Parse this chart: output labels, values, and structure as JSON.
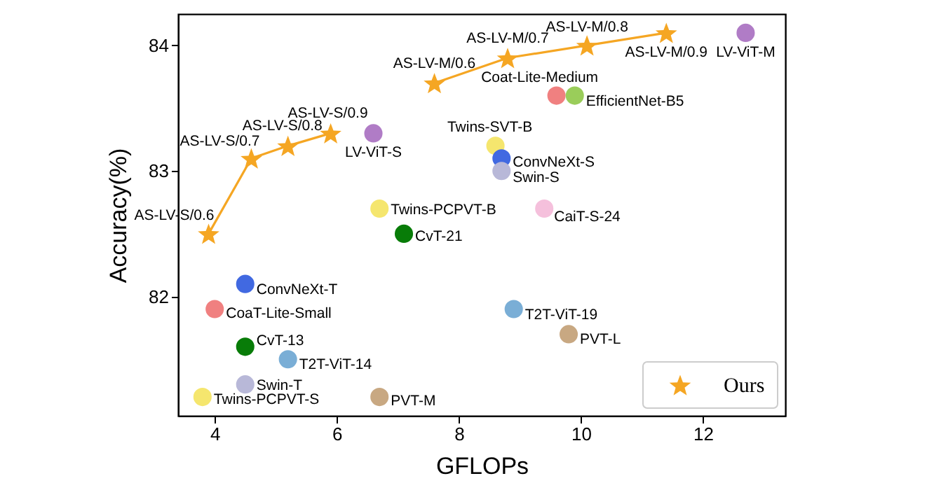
{
  "chart_data": {
    "type": "scatter",
    "xlabel": "GFLOPs",
    "ylabel": "Accuracy(%)",
    "xlim": [
      3.4,
      13.35
    ],
    "xticks": [
      4,
      6,
      8,
      10,
      12
    ],
    "ylim": [
      81.05,
      84.25
    ],
    "yticks": [
      82,
      83,
      84
    ],
    "grid": false,
    "legend": "bottom right",
    "series": [
      {
        "name": "Ours",
        "type": "line",
        "marker": "star",
        "color": "#f5a623",
        "x": [
          3.9,
          4.6,
          5.2,
          5.9
        ],
        "values": [
          82.5,
          83.1,
          83.2,
          83.3
        ]
      },
      {
        "type": "line",
        "marker": "star",
        "color": "#f5a623",
        "x": [
          7.6,
          8.8,
          10.1,
          11.4
        ],
        "values": [
          83.7,
          83.9,
          84.0,
          84.1
        ]
      },
      {
        "name": "LV-ViT-M",
        "type": "scatter",
        "marker": "circle",
        "color": "#b07cc6",
        "x": [
          12.7
        ],
        "values": [
          84.1
        ]
      },
      {
        "name": "LV-ViT-S",
        "marker": "circle",
        "color": "#b07cc6",
        "x": [
          6.6
        ],
        "values": [
          83.3
        ]
      },
      {
        "name": "Coat-Lite-Medium",
        "marker": "circle",
        "color": "#f08080",
        "x": [
          9.6
        ],
        "values": [
          83.6
        ]
      },
      {
        "name": "EfficientNet-B5",
        "marker": "circle",
        "color": "#9acd5a",
        "x": [
          9.9
        ],
        "values": [
          83.6
        ]
      },
      {
        "name": "Twins-SVT-B",
        "marker": "circle",
        "color": "#f5e66e",
        "x": [
          8.6
        ],
        "values": [
          83.2
        ]
      },
      {
        "name": "ConvNeXt-S",
        "marker": "circle",
        "color": "#4169e1",
        "x": [
          8.7
        ],
        "values": [
          83.1
        ]
      },
      {
        "name": "Swin-S",
        "marker": "circle",
        "color": "#b8b8d8",
        "x": [
          8.7
        ],
        "values": [
          83.0
        ]
      },
      {
        "name": "CaiT-S-24",
        "marker": "circle",
        "color": "#f5c0dc",
        "x": [
          9.4
        ],
        "values": [
          82.7
        ]
      },
      {
        "name": "Twins-PCPVT-B",
        "marker": "circle",
        "color": "#f5e66e",
        "x": [
          6.7
        ],
        "values": [
          82.7
        ]
      },
      {
        "name": "CvT-21",
        "marker": "circle",
        "color": "#087c08",
        "x": [
          7.1
        ],
        "values": [
          82.5
        ]
      },
      {
        "name": "ConvNeXt-T",
        "marker": "circle",
        "color": "#4169e1",
        "x": [
          4.5
        ],
        "values": [
          82.1
        ]
      },
      {
        "name": "CoaT-Lite-Small",
        "marker": "circle",
        "color": "#f08080",
        "x": [
          4.0
        ],
        "values": [
          81.9
        ]
      },
      {
        "name": "CvT-13",
        "marker": "circle",
        "color": "#087c08",
        "x": [
          4.5
        ],
        "values": [
          81.6
        ]
      },
      {
        "name": "T2T-ViT-14",
        "marker": "circle",
        "color": "#7aaed6",
        "x": [
          5.2
        ],
        "values": [
          81.5
        ]
      },
      {
        "name": "Swin-T",
        "marker": "circle",
        "color": "#b8b8d8",
        "x": [
          4.5
        ],
        "values": [
          81.3
        ]
      },
      {
        "name": "Twins-PCPVT-S",
        "marker": "circle",
        "color": "#f5e66e",
        "x": [
          3.8
        ],
        "values": [
          81.2
        ]
      },
      {
        "name": "PVT-M",
        "marker": "circle",
        "color": "#c8a882",
        "x": [
          6.7
        ],
        "values": [
          81.2
        ]
      },
      {
        "name": "T2T-ViT-19",
        "marker": "circle",
        "color": "#7aaed6",
        "x": [
          8.9
        ],
        "values": [
          81.9
        ]
      },
      {
        "name": "PVT-L",
        "marker": "circle",
        "color": "#c8a882",
        "x": [
          9.8
        ],
        "values": [
          81.7
        ]
      }
    ],
    "annotations": [
      {
        "text": "AS-LV-S/0.6",
        "x": 3.9,
        "y": 82.5
      },
      {
        "text": "AS-LV-S/0.7",
        "x": 4.6,
        "y": 83.1
      },
      {
        "text": "AS-LV-S/0.8",
        "x": 5.2,
        "y": 83.2
      },
      {
        "text": "AS-LV-S/0.9",
        "x": 5.9,
        "y": 83.3
      },
      {
        "text": "AS-LV-M/0.6",
        "x": 7.6,
        "y": 83.7
      },
      {
        "text": "AS-LV-M/0.7",
        "x": 8.8,
        "y": 83.9
      },
      {
        "text": "AS-LV-M/0.8",
        "x": 10.1,
        "y": 84.0
      },
      {
        "text": "AS-LV-M/0.9",
        "x": 11.4,
        "y": 84.1
      }
    ]
  }
}
